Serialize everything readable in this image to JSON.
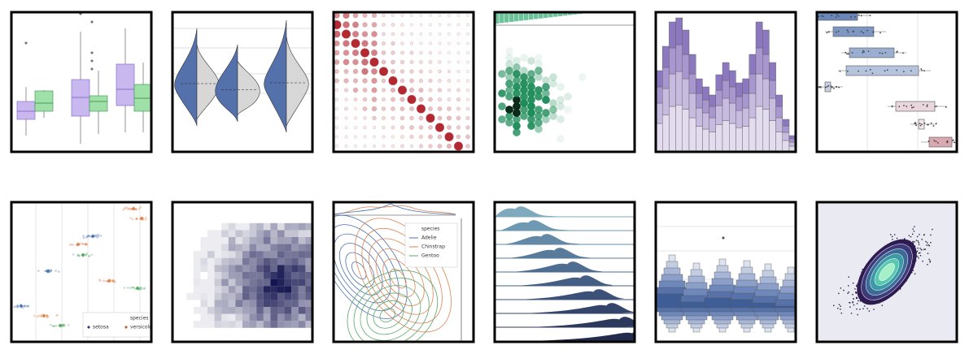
{
  "gallery": {
    "strip_legend": {
      "title": "species",
      "items": [
        "setosa",
        "versicolor"
      ]
    },
    "kde_legend": {
      "title": "species",
      "items": [
        "Adelie",
        "Chinstrap",
        "Gentoo"
      ]
    }
  }
}
